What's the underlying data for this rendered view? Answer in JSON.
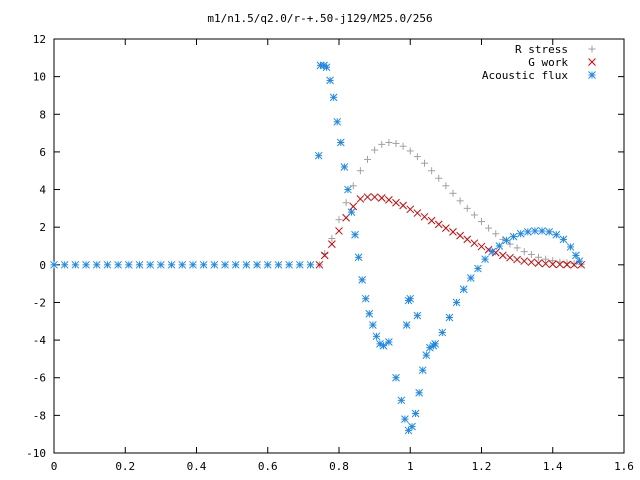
{
  "chart_data": {
    "type": "scatter",
    "title": "m1/n1.5/q2.0/r-+.50-j129/M25.0/256",
    "xlabel": "",
    "ylabel": "",
    "xlim": [
      0,
      1.6
    ],
    "ylim": [
      -10,
      12
    ],
    "xticks": [
      0,
      0.2,
      0.4,
      0.6,
      0.8,
      1,
      1.2,
      1.4,
      1.6
    ],
    "yticks": [
      -10,
      -8,
      -6,
      -4,
      -2,
      0,
      2,
      4,
      6,
      8,
      10,
      12
    ],
    "xtick_labels": [
      "0",
      "0.2",
      "0.4",
      "0.6",
      "0.8",
      "1",
      "1.2",
      "1.4",
      "1.6"
    ],
    "ytick_labels": [
      "-10",
      "-8",
      "-6",
      "-4",
      "-2",
      "0",
      "2",
      "4",
      "6",
      "8",
      "10",
      "12"
    ],
    "grid": false,
    "legend_position": "top-right",
    "series": [
      {
        "name": "R stress",
        "marker": "plus",
        "color": "#a0a0a0",
        "points": [
          [
            0.745,
            0.0
          ],
          [
            0.76,
            0.6
          ],
          [
            0.78,
            1.4
          ],
          [
            0.8,
            2.4
          ],
          [
            0.82,
            3.3
          ],
          [
            0.84,
            4.2
          ],
          [
            0.86,
            5.0
          ],
          [
            0.88,
            5.6
          ],
          [
            0.9,
            6.1
          ],
          [
            0.92,
            6.4
          ],
          [
            0.94,
            6.5
          ],
          [
            0.96,
            6.45
          ],
          [
            0.98,
            6.3
          ],
          [
            1.0,
            6.05
          ],
          [
            1.02,
            5.75
          ],
          [
            1.04,
            5.4
          ],
          [
            1.06,
            5.0
          ],
          [
            1.08,
            4.6
          ],
          [
            1.1,
            4.2
          ],
          [
            1.12,
            3.8
          ],
          [
            1.14,
            3.4
          ],
          [
            1.16,
            3.0
          ],
          [
            1.18,
            2.65
          ],
          [
            1.2,
            2.3
          ],
          [
            1.22,
            1.95
          ],
          [
            1.24,
            1.65
          ],
          [
            1.26,
            1.35
          ],
          [
            1.28,
            1.1
          ],
          [
            1.3,
            0.9
          ],
          [
            1.32,
            0.7
          ],
          [
            1.34,
            0.55
          ],
          [
            1.36,
            0.4
          ],
          [
            1.38,
            0.3
          ],
          [
            1.4,
            0.22
          ],
          [
            1.42,
            0.15
          ],
          [
            1.44,
            0.1
          ],
          [
            1.46,
            0.06
          ],
          [
            1.48,
            0.03
          ]
        ]
      },
      {
        "name": "G work",
        "marker": "cross",
        "color": "#cc0000",
        "points": [
          [
            0.745,
            0.0
          ],
          [
            0.76,
            0.5
          ],
          [
            0.78,
            1.1
          ],
          [
            0.8,
            1.8
          ],
          [
            0.82,
            2.5
          ],
          [
            0.84,
            3.1
          ],
          [
            0.86,
            3.5
          ],
          [
            0.88,
            3.6
          ],
          [
            0.9,
            3.6
          ],
          [
            0.92,
            3.55
          ],
          [
            0.94,
            3.45
          ],
          [
            0.96,
            3.3
          ],
          [
            0.98,
            3.15
          ],
          [
            1.0,
            2.95
          ],
          [
            1.02,
            2.75
          ],
          [
            1.04,
            2.55
          ],
          [
            1.06,
            2.35
          ],
          [
            1.08,
            2.15
          ],
          [
            1.1,
            1.95
          ],
          [
            1.12,
            1.75
          ],
          [
            1.14,
            1.55
          ],
          [
            1.16,
            1.35
          ],
          [
            1.18,
            1.15
          ],
          [
            1.2,
            0.97
          ],
          [
            1.22,
            0.8
          ],
          [
            1.24,
            0.65
          ],
          [
            1.26,
            0.5
          ],
          [
            1.28,
            0.38
          ],
          [
            1.3,
            0.28
          ],
          [
            1.32,
            0.2
          ],
          [
            1.34,
            0.14
          ],
          [
            1.36,
            0.09
          ],
          [
            1.38,
            0.06
          ],
          [
            1.4,
            0.03
          ],
          [
            1.42,
            0.02
          ],
          [
            1.44,
            0.01
          ],
          [
            1.46,
            0.0
          ],
          [
            1.48,
            0.0
          ]
        ]
      },
      {
        "name": "Acoustic flux",
        "marker": "star",
        "color": "#1e88e5",
        "points": [
          [
            0.0,
            0.0
          ],
          [
            0.03,
            0.0
          ],
          [
            0.06,
            0.0
          ],
          [
            0.09,
            0.0
          ],
          [
            0.12,
            0.0
          ],
          [
            0.15,
            0.0
          ],
          [
            0.18,
            0.0
          ],
          [
            0.21,
            0.0
          ],
          [
            0.24,
            0.0
          ],
          [
            0.27,
            0.0
          ],
          [
            0.3,
            0.0
          ],
          [
            0.33,
            0.0
          ],
          [
            0.36,
            0.0
          ],
          [
            0.39,
            0.0
          ],
          [
            0.42,
            0.0
          ],
          [
            0.45,
            0.0
          ],
          [
            0.48,
            0.0
          ],
          [
            0.51,
            0.0
          ],
          [
            0.54,
            0.0
          ],
          [
            0.57,
            0.0
          ],
          [
            0.6,
            0.0
          ],
          [
            0.63,
            0.0
          ],
          [
            0.66,
            0.0
          ],
          [
            0.69,
            0.0
          ],
          [
            0.72,
            0.0
          ],
          [
            0.743,
            5.8
          ],
          [
            0.748,
            10.6
          ],
          [
            0.758,
            10.6
          ],
          [
            0.765,
            10.5
          ],
          [
            0.775,
            9.8
          ],
          [
            0.785,
            8.9
          ],
          [
            0.795,
            7.6
          ],
          [
            0.805,
            6.5
          ],
          [
            0.815,
            5.2
          ],
          [
            0.825,
            4.0
          ],
          [
            0.835,
            2.8
          ],
          [
            0.845,
            1.6
          ],
          [
            0.855,
            0.4
          ],
          [
            0.865,
            -0.8
          ],
          [
            0.875,
            -1.8
          ],
          [
            0.885,
            -2.6
          ],
          [
            0.895,
            -3.2
          ],
          [
            0.905,
            -3.8
          ],
          [
            0.915,
            -4.2
          ],
          [
            0.925,
            -4.3
          ],
          [
            0.94,
            -4.1
          ],
          [
            0.96,
            -6.0
          ],
          [
            0.975,
            -7.2
          ],
          [
            0.985,
            -8.2
          ],
          [
            0.995,
            -8.8
          ],
          [
            1.005,
            -8.6
          ],
          [
            1.015,
            -7.9
          ],
          [
            1.025,
            -6.8
          ],
          [
            1.035,
            -5.6
          ],
          [
            1.045,
            -4.8
          ],
          [
            1.055,
            -4.4
          ],
          [
            1.065,
            -4.3
          ],
          [
            0.99,
            -3.2
          ],
          [
            0.995,
            -1.9
          ],
          [
            1.0,
            -1.8
          ],
          [
            1.02,
            -2.7
          ],
          [
            1.07,
            -4.2
          ],
          [
            1.09,
            -3.6
          ],
          [
            1.11,
            -2.8
          ],
          [
            1.13,
            -2.0
          ],
          [
            1.15,
            -1.3
          ],
          [
            1.17,
            -0.7
          ],
          [
            1.19,
            -0.2
          ],
          [
            1.21,
            0.3
          ],
          [
            1.23,
            0.7
          ],
          [
            1.25,
            1.0
          ],
          [
            1.27,
            1.3
          ],
          [
            1.29,
            1.5
          ],
          [
            1.31,
            1.65
          ],
          [
            1.33,
            1.75
          ],
          [
            1.35,
            1.8
          ],
          [
            1.37,
            1.8
          ],
          [
            1.39,
            1.75
          ],
          [
            1.41,
            1.6
          ],
          [
            1.43,
            1.35
          ],
          [
            1.45,
            0.95
          ],
          [
            1.465,
            0.5
          ],
          [
            1.475,
            0.2
          ]
        ]
      }
    ]
  }
}
